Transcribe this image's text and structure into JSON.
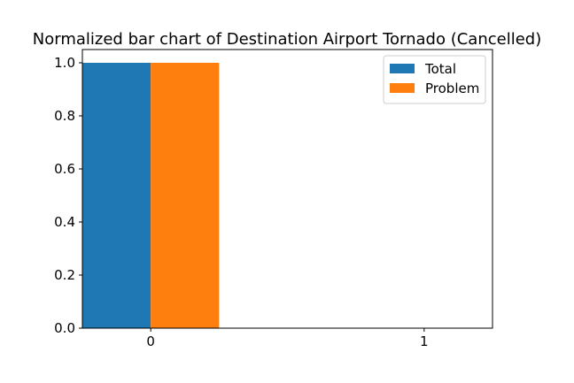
{
  "chart_data": {
    "type": "bar",
    "title": "Normalized bar chart of Destination Airport Tornado (Cancelled)",
    "xlabel": "",
    "ylabel": "",
    "categories": [
      "0",
      "1"
    ],
    "series": [
      {
        "name": "Total",
        "values": [
          1.0,
          0.0
        ],
        "color": "#1f77b4"
      },
      {
        "name": "Problem",
        "values": [
          1.0,
          0.0
        ],
        "color": "#ff7f0e"
      }
    ],
    "ylim": [
      0,
      1.05
    ],
    "yticks": [
      "0.0",
      "0.2",
      "0.4",
      "0.6",
      "0.8",
      "1.0"
    ],
    "legend_position": "top-right",
    "grid": false
  }
}
